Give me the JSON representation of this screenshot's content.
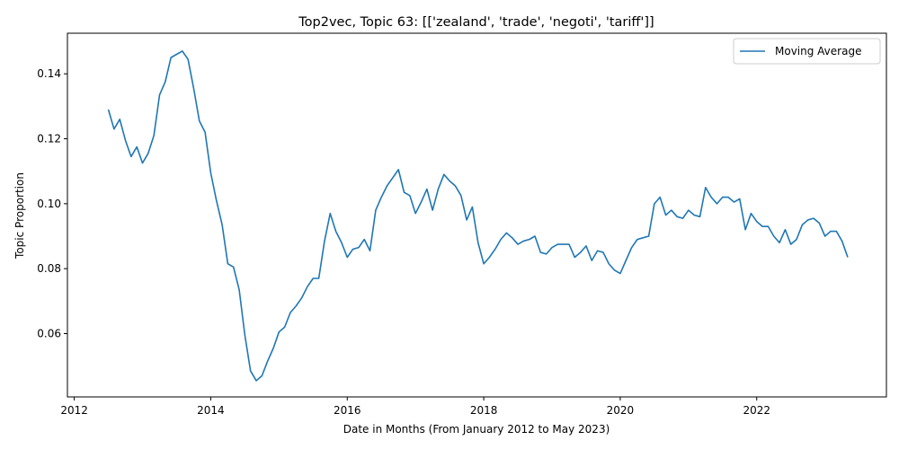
{
  "chart_data": {
    "type": "line",
    "title": "Top2vec, Topic 63: [['zealand', 'trade', 'negoti', 'tariff']]",
    "xlabel": "Date in Months (From January 2012 to May 2023)",
    "ylabel": "Topic Proportion",
    "xlim": [
      2011.9,
      2023.9
    ],
    "ylim": [
      0.0405,
      0.1525
    ],
    "xticks": [
      2012,
      2014,
      2016,
      2018,
      2020,
      2022
    ],
    "yticks": [
      0.06,
      0.08,
      0.1,
      0.12,
      0.14
    ],
    "ytick_labels": [
      "0.06",
      "0.08",
      "0.10",
      "0.12",
      "0.14"
    ],
    "grid": false,
    "legend": {
      "placement": "upper-right"
    },
    "series": [
      {
        "name": "Moving Average",
        "color": "#1f77b4",
        "x": [
          2012.5,
          2012.583,
          2012.667,
          2012.75,
          2012.833,
          2012.917,
          2013.0,
          2013.083,
          2013.167,
          2013.25,
          2013.333,
          2013.417,
          2013.5,
          2013.583,
          2013.667,
          2013.75,
          2013.833,
          2013.917,
          2014.0,
          2014.083,
          2014.167,
          2014.25,
          2014.333,
          2014.417,
          2014.5,
          2014.583,
          2014.667,
          2014.75,
          2014.833,
          2014.917,
          2015.0,
          2015.083,
          2015.167,
          2015.25,
          2015.333,
          2015.417,
          2015.5,
          2015.583,
          2015.667,
          2015.75,
          2015.833,
          2015.917,
          2016.0,
          2016.083,
          2016.167,
          2016.25,
          2016.333,
          2016.417,
          2016.5,
          2016.583,
          2016.667,
          2016.75,
          2016.833,
          2016.917,
          2017.0,
          2017.083,
          2017.167,
          2017.25,
          2017.333,
          2017.417,
          2017.5,
          2017.583,
          2017.667,
          2017.75,
          2017.833,
          2017.917,
          2018.0,
          2018.083,
          2018.167,
          2018.25,
          2018.333,
          2018.417,
          2018.5,
          2018.583,
          2018.667,
          2018.75,
          2018.833,
          2018.917,
          2019.0,
          2019.083,
          2019.167,
          2019.25,
          2019.333,
          2019.417,
          2019.5,
          2019.583,
          2019.667,
          2019.75,
          2019.833,
          2019.917,
          2020.0,
          2020.083,
          2020.167,
          2020.25,
          2020.333,
          2020.417,
          2020.5,
          2020.583,
          2020.667,
          2020.75,
          2020.833,
          2020.917,
          2021.0,
          2021.083,
          2021.167,
          2021.25,
          2021.333,
          2021.417,
          2021.5,
          2021.583,
          2021.667,
          2021.75,
          2021.833,
          2021.917,
          2022.0,
          2022.083,
          2022.167,
          2022.25,
          2022.333,
          2022.417,
          2022.5,
          2022.583,
          2022.667,
          2022.75,
          2022.833,
          2022.917,
          2023.0,
          2023.083,
          2023.167,
          2023.25,
          2023.333
        ],
        "values": [
          0.129,
          0.123,
          0.126,
          0.1195,
          0.1145,
          0.1175,
          0.1125,
          0.1155,
          0.121,
          0.1335,
          0.1375,
          0.145,
          0.146,
          0.147,
          0.1445,
          0.1355,
          0.1255,
          0.122,
          0.1095,
          0.101,
          0.0935,
          0.0815,
          0.0805,
          0.0735,
          0.0595,
          0.0485,
          0.0455,
          0.047,
          0.0515,
          0.0555,
          0.0605,
          0.062,
          0.0665,
          0.0685,
          0.071,
          0.0745,
          0.077,
          0.077,
          0.0885,
          0.097,
          0.0915,
          0.088,
          0.0835,
          0.086,
          0.0865,
          0.089,
          0.0855,
          0.098,
          0.102,
          0.1055,
          0.108,
          0.1105,
          0.1035,
          0.1025,
          0.097,
          0.1005,
          0.1045,
          0.098,
          0.1045,
          0.109,
          0.107,
          0.1055,
          0.1025,
          0.095,
          0.099,
          0.088,
          0.0815,
          0.0835,
          0.086,
          0.089,
          0.091,
          0.0895,
          0.0875,
          0.0885,
          0.089,
          0.09,
          0.085,
          0.0845,
          0.0865,
          0.0875,
          0.0875,
          0.0875,
          0.0835,
          0.085,
          0.087,
          0.0825,
          0.0855,
          0.085,
          0.0815,
          0.0795,
          0.0785,
          0.0825,
          0.0865,
          0.089,
          0.0895,
          0.09,
          0.1,
          0.102,
          0.0965,
          0.098,
          0.096,
          0.0955,
          0.098,
          0.0965,
          0.096,
          0.105,
          0.102,
          0.1,
          0.102,
          0.102,
          0.1005,
          0.1015,
          0.092,
          0.097,
          0.0945,
          0.093,
          0.093,
          0.09,
          0.088,
          0.092,
          0.0875,
          0.089,
          0.0935,
          0.095,
          0.0955,
          0.094,
          0.09,
          0.0915,
          0.0915,
          0.0885,
          0.0835
        ]
      }
    ]
  }
}
